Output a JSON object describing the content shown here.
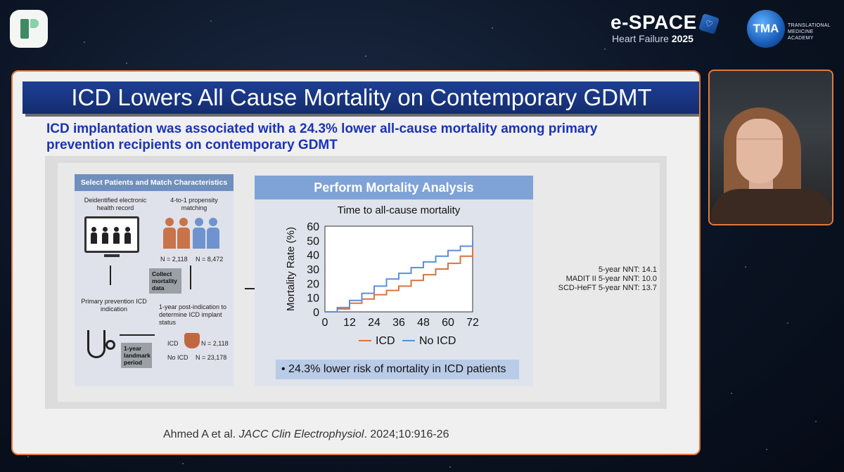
{
  "header": {
    "espace_title": "e-SPACE",
    "espace_subtitle": "Heart Failure",
    "espace_year": "2025",
    "tma_abbr": "TMA",
    "tma_line1": "TRANSLATIONAL",
    "tma_line2": "MEDICINE ACADEMY"
  },
  "slide": {
    "title": "ICD Lowers All Cause Mortality on Contemporary GDMT",
    "subtitle": "ICD implantation was associated with a 24.3% lower all-cause mortality among primary prevention recipients on contemporary GDMT",
    "citation_authors": "Ahmed A et al.",
    "citation_journal": "JACC Clin Electrophysiol",
    "citation_ref": ". 2024;10:916-26"
  },
  "left_panel": {
    "header": "Select Patients and Match Characteristics",
    "ehr_label": "Deidentified electronic health record",
    "matching_label": "4-to-1 propensity matching",
    "n_icd_match": "N = 2,118",
    "n_noicd_match": "N = 8,472",
    "collect_label": "Collect mortality data",
    "primary_label": "Primary prevention ICD indication",
    "post_label": "1-year post-indication to determine ICD implant status",
    "landmark_label": "1-year landmark period",
    "icd_label": "ICD",
    "icd_n": "N = 2,118",
    "noicd_label": "No ICD",
    "noicd_n": "N = 23,178"
  },
  "right_panel": {
    "header": "Perform Mortality Analysis",
    "footnote": "• 24.3% lower risk of mortality in ICD patients"
  },
  "nnt": {
    "line1": "5-year NNT: 14.1",
    "line2": "MADIT II 5-year NNT: 10.0",
    "line3": "SCD-HeFT  5-year NNT: 13.7"
  },
  "colors": {
    "icd": "#d9743f",
    "no_icd": "#5b8fd6",
    "person_orange": "#c9734a",
    "person_blue": "#6f93cf"
  },
  "chart_data": {
    "type": "line",
    "title": "Time to all-cause mortality",
    "xlabel": "",
    "ylabel": "Mortality Rate (%)",
    "x": [
      0,
      6,
      12,
      18,
      24,
      30,
      36,
      42,
      48,
      54,
      60,
      66,
      72
    ],
    "xticks": [
      0,
      12,
      24,
      36,
      48,
      60,
      72
    ],
    "yticks": [
      0,
      10,
      20,
      30,
      40,
      50,
      60
    ],
    "xlim": [
      0,
      72
    ],
    "ylim": [
      0,
      60
    ],
    "legend": "bottom",
    "series": [
      {
        "name": "ICD",
        "values": [
          0,
          2,
          6,
          9,
          12,
          15,
          18,
          22,
          26,
          30,
          34,
          39,
          46
        ]
      },
      {
        "name": "No ICD",
        "values": [
          0,
          3,
          8,
          13,
          18,
          23,
          27,
          31,
          35,
          39,
          43,
          46,
          50
        ]
      }
    ]
  }
}
